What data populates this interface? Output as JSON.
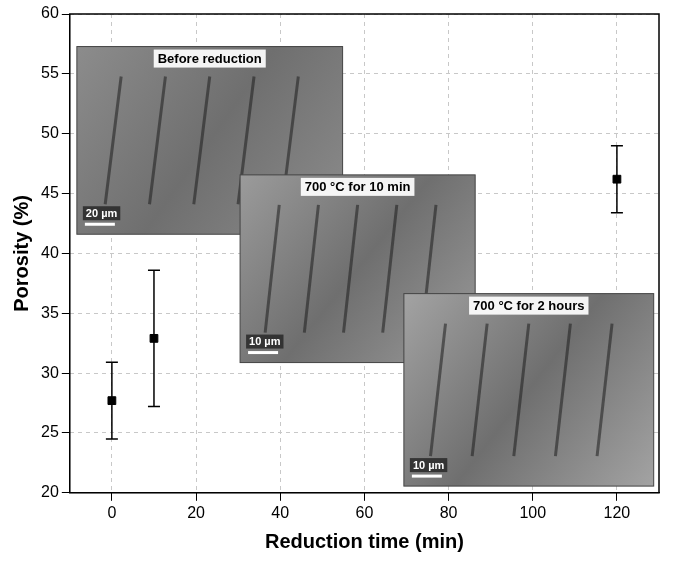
{
  "chart_data": {
    "type": "scatter",
    "x_label": "Reduction time (min)",
    "y_label": "Porosity (%)",
    "x": [
      0,
      10,
      120
    ],
    "values": [
      27.7,
      32.9,
      46.2
    ],
    "errors": [
      3.2,
      5.7,
      2.8
    ],
    "color": "#000000",
    "marker": "square",
    "xlim": [
      -10,
      130
    ],
    "xticks": [
      0,
      20,
      40,
      60,
      80,
      100,
      120
    ],
    "ylim": [
      20,
      60
    ],
    "yticks": [
      20,
      25,
      30,
      35,
      40,
      45,
      50,
      55,
      60
    ],
    "grid": true,
    "insets": [
      {
        "title": "Before reduction",
        "scale_bar": "20 µm"
      },
      {
        "title": "700 °C for 10 min",
        "scale_bar": "10 µm"
      },
      {
        "title": "700 °C for 2 hours",
        "scale_bar": "10 µm"
      }
    ]
  }
}
